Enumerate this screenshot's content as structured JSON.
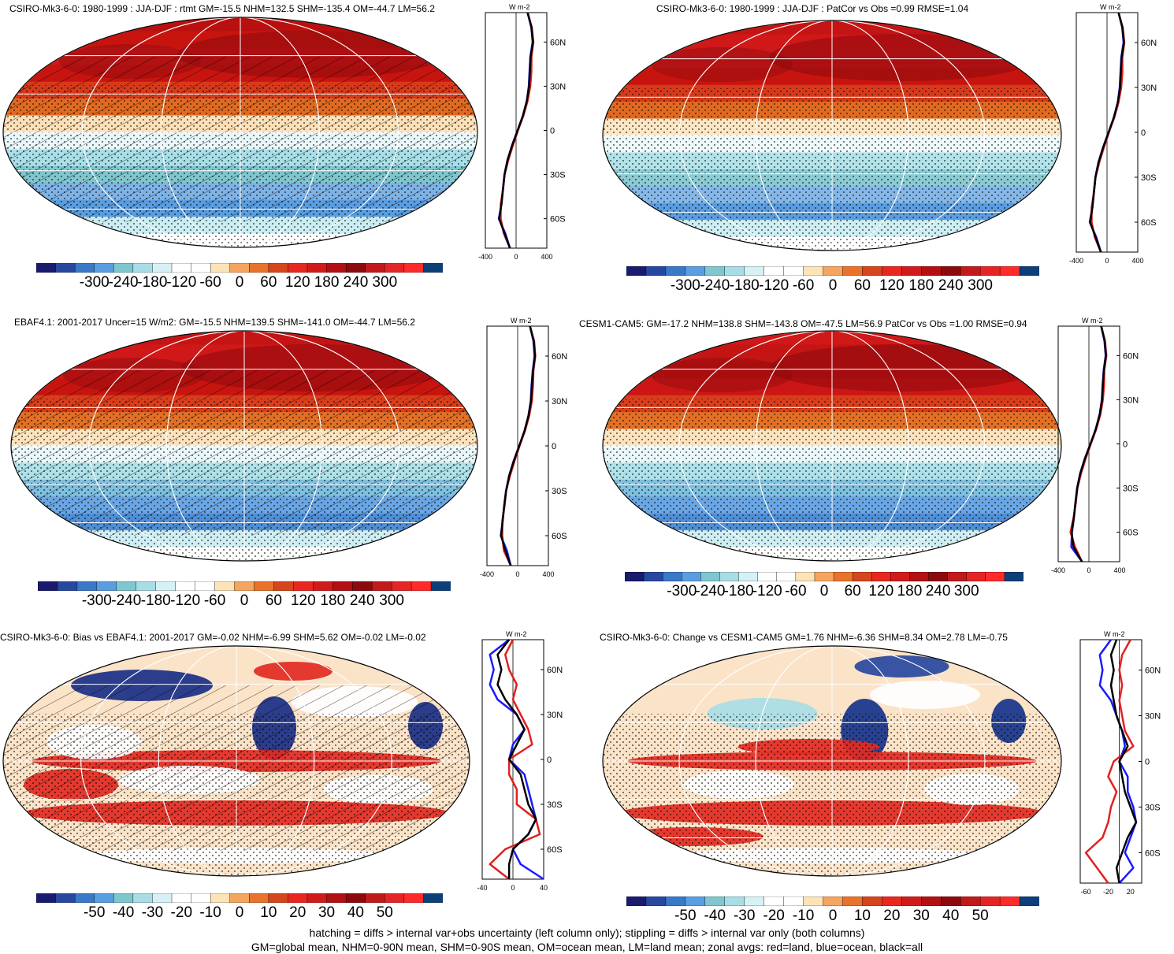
{
  "footer": {
    "line1": "hatching = diffs > internal var+obs uncertainty (left column only); stippling = diffs > internal var only (both columns)",
    "line2": "GM=global mean, NHM=0-90N mean, SHM=0-90S mean, OM=ocean mean, LM=land mean; zonal avgs: red=land, blue=ocean, black=all"
  },
  "colors": {
    "ramp_full": [
      "#1a1a6e",
      "#2848a0",
      "#3a78c8",
      "#5a9de0",
      "#7fc6cf",
      "#a8dde6",
      "#d6f1f5",
      "#ffffff",
      "#ffffff",
      "#fde3b8",
      "#f5a55f",
      "#e9732a",
      "#d6451c",
      "#e8271f",
      "#d11b1b",
      "#b40f12",
      "#8c0a0e",
      "#c21a1a",
      "#e52525",
      "#ff2a2a",
      "#0d3f78"
    ],
    "land": "#e02020",
    "ocean": "#1a1aff",
    "all": "#000000"
  },
  "chart_data": [
    {
      "id": "model",
      "type": "map",
      "title": "CSIRO-Mk3-6-0: 1980-1999 : JJA-DJF : rtmt GM=-15.5 NHM=132.5 SHM=-135.4 OM=-44.7 LM=56.2",
      "units": "W m-2",
      "cbar_ticks": [
        "-300",
        "-240",
        "-180",
        "-120",
        "-60",
        "0",
        "60",
        "120",
        "180",
        "240",
        "300"
      ],
      "zonal_xticks": [
        "-400",
        "0",
        "400"
      ],
      "zonal_xlim": [
        -400,
        400
      ],
      "lat_ticks": [
        "60N",
        "30N",
        "0",
        "30S",
        "60S"
      ],
      "lat_profile": [
        80,
        70,
        60,
        50,
        40,
        30,
        20,
        10,
        0,
        -10,
        -20,
        -30,
        -40,
        -50,
        -60,
        -70,
        -80
      ],
      "zonal_all": [
        150,
        200,
        220,
        190,
        180,
        170,
        140,
        90,
        20,
        -50,
        -110,
        -150,
        -170,
        -190,
        -220,
        -150,
        -80
      ],
      "zonal_land": [
        150,
        205,
        225,
        200,
        200,
        185,
        150,
        95,
        25,
        -40,
        -100,
        -150,
        -170,
        -200,
        -200,
        -160,
        -80
      ],
      "zonal_ocean": [
        150,
        198,
        215,
        185,
        175,
        165,
        140,
        88,
        20,
        -52,
        -112,
        -152,
        -172,
        -190,
        -225,
        -140,
        -80
      ]
    },
    {
      "id": "model-patcor",
      "type": "map",
      "title": "CSIRO-Mk3-6-0: 1980-1999 : JJA-DJF : PatCor vs Obs =0.99 RMSE=1.04",
      "units": "W m-2",
      "cbar_ticks": [
        "-300",
        "-240",
        "-180",
        "-120",
        "-60",
        "0",
        "60",
        "120",
        "180",
        "240",
        "300"
      ],
      "zonal_xticks": [
        "-400",
        "0",
        "400"
      ],
      "zonal_xlim": [
        -400,
        400
      ],
      "lat_ticks": [
        "60N",
        "30N",
        "0",
        "30S",
        "60S"
      ],
      "lat_profile": [
        80,
        70,
        60,
        50,
        40,
        30,
        20,
        10,
        0,
        -10,
        -20,
        -30,
        -40,
        -50,
        -60,
        -70,
        -80
      ],
      "zonal_all": [
        150,
        200,
        220,
        190,
        180,
        170,
        140,
        90,
        20,
        -50,
        -110,
        -150,
        -170,
        -190,
        -220,
        -150,
        -80
      ],
      "zonal_land": [
        150,
        205,
        225,
        200,
        200,
        185,
        150,
        95,
        25,
        -40,
        -100,
        -150,
        -170,
        -200,
        -200,
        -160,
        -80
      ],
      "zonal_ocean": [
        150,
        198,
        215,
        185,
        175,
        165,
        140,
        88,
        20,
        -52,
        -112,
        -152,
        -172,
        -190,
        -225,
        -140,
        -80
      ]
    },
    {
      "id": "obs",
      "type": "map",
      "title": "EBAF4.1: 2001-2017 Uncer=15 W/m2: GM=-15.5 NHM=139.5 SHM=-141.0 OM=-44.7 LM=56.2",
      "units": "W m-2",
      "cbar_ticks": [
        "-300",
        "-240",
        "-180",
        "-120",
        "-60",
        "0",
        "60",
        "120",
        "180",
        "240",
        "300"
      ],
      "zonal_xticks": [
        "-400",
        "0",
        "400"
      ],
      "zonal_xlim": [
        -400,
        400
      ],
      "lat_ticks": [
        "60N",
        "30N",
        "0",
        "30S",
        "60S"
      ],
      "lat_profile": [
        80,
        70,
        60,
        50,
        40,
        30,
        20,
        10,
        0,
        -10,
        -20,
        -30,
        -40,
        -50,
        -60,
        -70,
        -80
      ],
      "zonal_all": [
        160,
        210,
        225,
        200,
        185,
        175,
        140,
        90,
        20,
        -50,
        -110,
        -150,
        -175,
        -195,
        -215,
        -160,
        -90
      ],
      "zonal_land": [
        160,
        215,
        230,
        205,
        200,
        185,
        150,
        95,
        25,
        -40,
        -100,
        -150,
        -170,
        -200,
        -200,
        -180,
        -90
      ],
      "zonal_ocean": [
        160,
        205,
        220,
        195,
        180,
        170,
        140,
        88,
        20,
        -52,
        -112,
        -152,
        -176,
        -195,
        -220,
        -140,
        -90
      ]
    },
    {
      "id": "cesm",
      "type": "map",
      "title": "CESM1-CAM5: GM=-17.2 NHM=138.8 SHM=-143.8 OM=-47.5 LM=56.9 PatCor vs Obs =1.00 RMSE=0.94",
      "units": "W m-2",
      "cbar_ticks": [
        "-300",
        "-240",
        "-180",
        "-120",
        "-60",
        "0",
        "60",
        "120",
        "180",
        "240",
        "300"
      ],
      "zonal_xticks": [
        "-400",
        "0",
        "400"
      ],
      "zonal_xlim": [
        -400,
        400
      ],
      "lat_ticks": [
        "60N",
        "30N",
        "0",
        "30S",
        "60S"
      ],
      "lat_profile": [
        80,
        70,
        60,
        50,
        40,
        30,
        20,
        10,
        0,
        -10,
        -20,
        -30,
        -40,
        -50,
        -60,
        -70,
        -80
      ],
      "zonal_all": [
        160,
        205,
        222,
        195,
        182,
        172,
        140,
        90,
        20,
        -52,
        -112,
        -152,
        -175,
        -195,
        -225,
        -200,
        -90
      ],
      "zonal_land": [
        160,
        210,
        228,
        200,
        198,
        182,
        150,
        95,
        25,
        -42,
        -102,
        -150,
        -170,
        -200,
        -240,
        -180,
        -90
      ],
      "zonal_ocean": [
        160,
        202,
        218,
        192,
        178,
        168,
        140,
        88,
        20,
        -54,
        -114,
        -154,
        -176,
        -195,
        -220,
        -230,
        -90
      ]
    },
    {
      "id": "bias",
      "type": "map",
      "title": "CSIRO-Mk3-6-0: Bias vs EBAF4.1: 2001-2017 GM=-0.02 NHM=-6.99 SHM=5.62 OM=-0.02 LM=-0.02",
      "units": "W m-2",
      "cbar_ticks": [
        "-50",
        "-40",
        "-30",
        "-20",
        "-10",
        "0",
        "10",
        "20",
        "30",
        "40",
        "50"
      ],
      "zonal_xticks": [
        "-40",
        "0",
        "40"
      ],
      "zonal_xlim": [
        -40,
        40
      ],
      "lat_ticks": [
        "60N",
        "30N",
        "0",
        "30S",
        "60S"
      ],
      "lat_profile": [
        80,
        70,
        60,
        50,
        40,
        30,
        20,
        10,
        0,
        -10,
        -20,
        -30,
        -40,
        -50,
        -60,
        -70,
        -80
      ],
      "zonal_all": [
        -5,
        -20,
        -15,
        -20,
        -10,
        5,
        15,
        5,
        -5,
        10,
        15,
        20,
        30,
        20,
        0,
        -5,
        -5
      ],
      "zonal_land": [
        0,
        -10,
        -5,
        5,
        0,
        10,
        20,
        25,
        -5,
        -5,
        5,
        5,
        30,
        35,
        -10,
        -30,
        -5
      ],
      "zonal_ocean": [
        -5,
        -30,
        -25,
        -30,
        -20,
        5,
        15,
        0,
        -5,
        15,
        20,
        25,
        30,
        20,
        0,
        10,
        40
      ]
    },
    {
      "id": "change",
      "type": "map",
      "title": "CSIRO-Mk3-6-0: Change vs CESM1-CAM5 GM=1.76 NHM=-6.36 SHM=8.34 OM=2.78 LM=-0.75",
      "units": "W m-2",
      "cbar_ticks": [
        "-50",
        "-40",
        "-30",
        "-20",
        "-10",
        "0",
        "10",
        "20",
        "30",
        "40",
        "50"
      ],
      "zonal_xticks": [
        "-60",
        "-20",
        "20"
      ],
      "zonal_xlim": [
        -70,
        40
      ],
      "lat_ticks": [
        "60N",
        "30N",
        "0",
        "30S",
        "60S"
      ],
      "lat_profile": [
        80,
        70,
        60,
        50,
        40,
        30,
        20,
        10,
        0,
        -10,
        -20,
        -30,
        -40,
        -50,
        -60,
        -70,
        -80
      ],
      "zonal_all": [
        -5,
        -15,
        -10,
        -15,
        -10,
        -5,
        5,
        15,
        0,
        5,
        10,
        20,
        30,
        15,
        5,
        -5,
        0
      ],
      "zonal_land": [
        20,
        5,
        0,
        5,
        0,
        5,
        10,
        25,
        -10,
        -20,
        -5,
        -15,
        -20,
        -30,
        -60,
        -40,
        -20
      ],
      "zonal_ocean": [
        -15,
        -35,
        -30,
        -35,
        -15,
        -5,
        5,
        10,
        0,
        15,
        15,
        25,
        30,
        20,
        10,
        25,
        0
      ]
    }
  ]
}
